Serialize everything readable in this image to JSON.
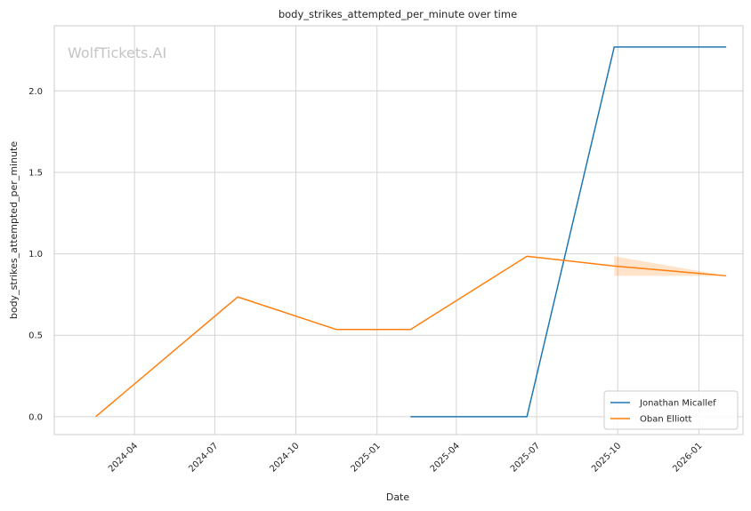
{
  "chart_data": {
    "type": "line",
    "title": "body_strikes_attempted_per_minute over time",
    "xlabel": "Date",
    "ylabel": "body_strikes_attempted_per_minute",
    "watermark": "WolfTickets.AI",
    "x_ticks": [
      "2024-04",
      "2024-07",
      "2024-10",
      "2025-01",
      "2025-04",
      "2025-07",
      "2025-10",
      "2026-01"
    ],
    "y_ticks": [
      "0.0",
      "0.5",
      "1.0",
      "1.5",
      "2.0"
    ],
    "xlim": [
      "2024-01-01",
      "2026-02-20"
    ],
    "ylim": [
      -0.11,
      2.4
    ],
    "grid": true,
    "legend_position": "lower-right",
    "series": [
      {
        "name": "Jonathan Micallef",
        "color": "#1f77b4",
        "x": [
          "2025-02-08",
          "2025-06-20",
          "2025-09-27",
          "2026-02-01"
        ],
        "y": [
          0.0,
          0.0,
          2.27,
          2.27
        ]
      },
      {
        "name": "Oban Elliott",
        "color": "#ff7f0e",
        "x": [
          "2024-02-17",
          "2024-07-27",
          "2024-11-16",
          "2025-02-08",
          "2025-06-20",
          "2025-09-27",
          "2026-02-01"
        ],
        "y": [
          0.0,
          0.735,
          0.535,
          0.535,
          0.985,
          0.925,
          0.865
        ],
        "band": {
          "x": [
            "2025-09-27",
            "2026-02-01"
          ],
          "lower": [
            0.865,
            0.865
          ],
          "upper": [
            0.985,
            0.865
          ]
        }
      }
    ]
  }
}
